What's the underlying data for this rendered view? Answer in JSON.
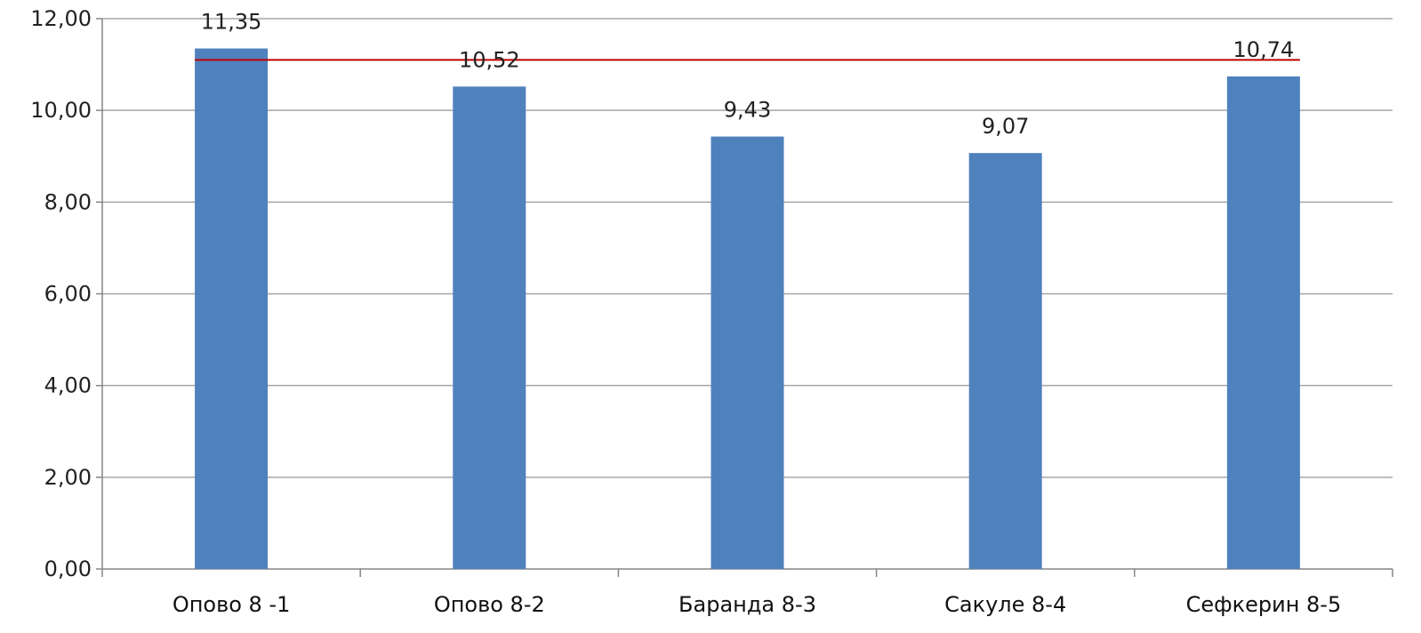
{
  "chart_data": {
    "type": "bar",
    "title": "",
    "xlabel": "",
    "ylabel": "",
    "categories": [
      "Опово 8 -1",
      "Опово 8-2",
      "Баранда 8-3",
      "Сакуле 8-4",
      "Сефкерин 8-5"
    ],
    "values": [
      11.35,
      10.52,
      9.43,
      9.07,
      10.74
    ],
    "data_labels": [
      "11,35",
      "10,52",
      "9,43",
      "9,07",
      "10,74"
    ],
    "ylim": [
      0,
      12
    ],
    "yticks": [
      0,
      2,
      4,
      6,
      8,
      10,
      12
    ],
    "ytick_labels": [
      "0,00",
      "2,00",
      "4,00",
      "6,00",
      "8,00",
      "10,00",
      "12,00"
    ],
    "reference_line": {
      "value": 11.1
    },
    "grid": true,
    "legend": "none",
    "colors": {
      "bar": "#4F81BD",
      "reference_line": "#C00000",
      "grid": "#A6A6A6",
      "axis": "#868686"
    }
  }
}
